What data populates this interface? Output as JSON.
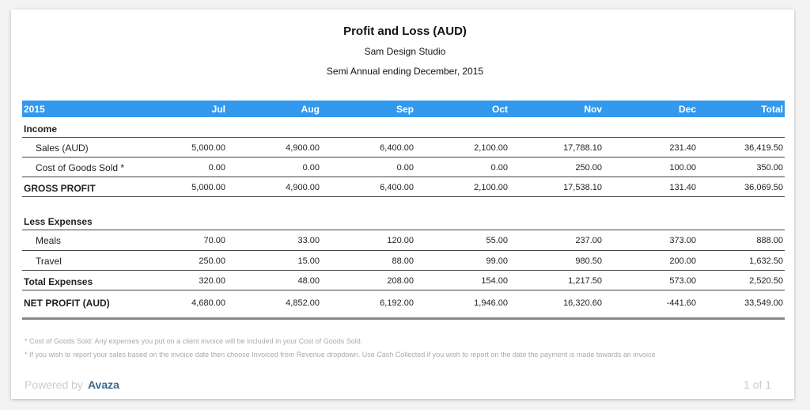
{
  "report": {
    "title": "Profit and Loss (AUD)",
    "company": "Sam Design Studio",
    "period": "Semi Annual ending December, 2015"
  },
  "table": {
    "columns": [
      "2015",
      "Jul",
      "Aug",
      "Sep",
      "Oct",
      "Nov",
      "Dec",
      "Total"
    ],
    "rows": [
      {
        "label": "Income",
        "type": "section",
        "values": []
      },
      {
        "label": "Sales (AUD)",
        "type": "item",
        "values": [
          "5,000.00",
          "4,900.00",
          "6,400.00",
          "2,100.00",
          "17,788.10",
          "231.40",
          "36,419.50"
        ]
      },
      {
        "label": "Cost of Goods Sold *",
        "type": "item",
        "values": [
          "0.00",
          "0.00",
          "0.00",
          "0.00",
          "250.00",
          "100.00",
          "350.00"
        ]
      },
      {
        "label": "GROSS PROFIT",
        "type": "total",
        "values": [
          "5,000.00",
          "4,900.00",
          "6,400.00",
          "2,100.00",
          "17,538.10",
          "131.40",
          "36,069.50"
        ]
      },
      {
        "label": "Less Expenses",
        "type": "section",
        "values": []
      },
      {
        "label": "Meals",
        "type": "item",
        "values": [
          "70.00",
          "33.00",
          "120.00",
          "55.00",
          "237.00",
          "373.00",
          "888.00"
        ]
      },
      {
        "label": "Travel",
        "type": "item",
        "values": [
          "250.00",
          "15.00",
          "88.00",
          "99.00",
          "980.50",
          "200.00",
          "1,632.50"
        ]
      },
      {
        "label": "Total Expenses",
        "type": "total",
        "values": [
          "320.00",
          "48.00",
          "208.00",
          "154.00",
          "1,217.50",
          "573.00",
          "2,520.50"
        ]
      },
      {
        "label": "NET PROFIT (AUD)",
        "type": "net",
        "values": [
          "4,680.00",
          "4,852.00",
          "6,192.00",
          "1,946.00",
          "16,320.60",
          "-441.60",
          "33,549.00"
        ]
      }
    ]
  },
  "notes": [
    "* Cost of Goods Sold: Any expenses you put on a client invoice will be included in your Cost of Goods Sold.",
    "* If you wish to report your sales based on the invoice date then choose Invoiced from Revenue dropdown. Use Cash Collected if you wish to report on the date the payment is made towards an invoice"
  ],
  "footer": {
    "powered_by": "Powered by",
    "brand": "Avaza",
    "page": "1 of 1"
  },
  "colors": {
    "header": "#3399ee",
    "brand": "#3a6a8e"
  }
}
